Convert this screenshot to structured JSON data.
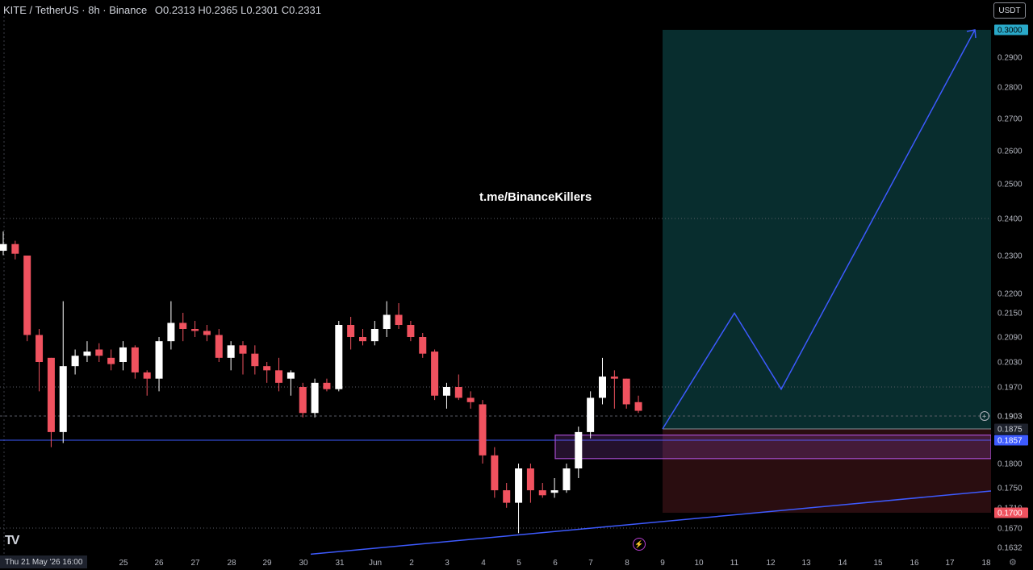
{
  "header": {
    "symbol": "KITE / TetherUS · 8h · Binance",
    "open_label": "O",
    "open": "0.2313",
    "high_label": "H",
    "high": "0.2365",
    "low_label": "L",
    "low": "0.2301",
    "close_label": "C",
    "close": "0.2331"
  },
  "currency": "USDT",
  "watermark": "t.me/BinanceKillers",
  "logo": "TV",
  "date_badge": "Thu 21 May '26   16:00",
  "icons": {
    "flash": "lightning-icon",
    "settings": "gear-icon",
    "logo": "tradingview-logo"
  },
  "colors": {
    "up": "#ffffff",
    "down": "#f0525f",
    "target_zone": "#082d2e",
    "stop_zone": "#2a0d10",
    "trend": "#3d5afe",
    "zone": "#a64ccf"
  },
  "chart_data": {
    "type": "candlestick",
    "timeframe": "8h",
    "ylim": [
      0.1632,
      0.3
    ],
    "y_ticks": [
      {
        "label": "0.2900",
        "v": 0.29
      },
      {
        "label": "0.2800",
        "v": 0.28
      },
      {
        "label": "0.2700",
        "v": 0.27
      },
      {
        "label": "0.2600",
        "v": 0.26
      },
      {
        "label": "0.2500",
        "v": 0.25
      },
      {
        "label": "0.2400",
        "v": 0.24
      },
      {
        "label": "0.2300",
        "v": 0.23
      },
      {
        "label": "0.2200",
        "v": 0.22
      },
      {
        "label": "0.2150",
        "v": 0.215
      },
      {
        "label": "0.2090",
        "v": 0.209
      },
      {
        "label": "0.2030",
        "v": 0.203
      },
      {
        "label": "0.1970",
        "v": 0.197
      },
      {
        "label": "0.1800",
        "v": 0.18
      },
      {
        "label": "0.1750",
        "v": 0.175
      },
      {
        "label": "0.1710",
        "v": 0.171
      },
      {
        "label": "0.1670",
        "v": 0.167
      },
      {
        "label": "0.1632",
        "v": 0.1632
      }
    ],
    "price_badges": [
      {
        "label": "0.3000",
        "v": 0.3,
        "bg": "#2aa9c9",
        "fg": "#000000"
      },
      {
        "label": "0.1903",
        "v": 0.1903,
        "bg": "#000000",
        "fg": "#d1d4dc",
        "ring": true
      },
      {
        "label": "0.1875",
        "v": 0.1875,
        "bg": "#1e222d",
        "fg": "#d1d4dc"
      },
      {
        "label": "0.1857",
        "v": 0.1857,
        "bg": "#3d5afe",
        "fg": "#ffffff"
      },
      {
        "label": "0.1700",
        "v": 0.17,
        "bg": "#f0525f",
        "fg": "#ffffff"
      }
    ],
    "x_ticks": [
      "25",
      "26",
      "27",
      "28",
      "29",
      "30",
      "31",
      "Jun",
      "2",
      "3",
      "4",
      "5",
      "6",
      "7",
      "8",
      "9",
      "10",
      "11",
      "12",
      "13",
      "14",
      "15",
      "16",
      "17",
      "18"
    ],
    "x_start_label": "Thu 21 May '26",
    "candles": [
      {
        "o": 0.2313,
        "h": 0.2365,
        "l": 0.2301,
        "c": 0.2331
      },
      {
        "o": 0.2331,
        "h": 0.234,
        "l": 0.229,
        "c": 0.2305
      },
      {
        "o": 0.23,
        "h": 0.23,
        "l": 0.208,
        "c": 0.2095
      },
      {
        "o": 0.2095,
        "h": 0.211,
        "l": 0.196,
        "c": 0.203
      },
      {
        "o": 0.204,
        "h": 0.204,
        "l": 0.184,
        "c": 0.187
      },
      {
        "o": 0.187,
        "h": 0.218,
        "l": 0.185,
        "c": 0.202
      },
      {
        "o": 0.202,
        "h": 0.206,
        "l": 0.2,
        "c": 0.2045
      },
      {
        "o": 0.2045,
        "h": 0.208,
        "l": 0.203,
        "c": 0.2055
      },
      {
        "o": 0.206,
        "h": 0.2075,
        "l": 0.203,
        "c": 0.2045
      },
      {
        "o": 0.204,
        "h": 0.206,
        "l": 0.201,
        "c": 0.2025
      },
      {
        "o": 0.203,
        "h": 0.208,
        "l": 0.201,
        "c": 0.2065
      },
      {
        "o": 0.2065,
        "h": 0.207,
        "l": 0.199,
        "c": 0.2005
      },
      {
        "o": 0.2005,
        "h": 0.201,
        "l": 0.195,
        "c": 0.199
      },
      {
        "o": 0.199,
        "h": 0.209,
        "l": 0.196,
        "c": 0.208
      },
      {
        "o": 0.208,
        "h": 0.218,
        "l": 0.206,
        "c": 0.2125
      },
      {
        "o": 0.2125,
        "h": 0.215,
        "l": 0.208,
        "c": 0.211
      },
      {
        "o": 0.211,
        "h": 0.213,
        "l": 0.209,
        "c": 0.2105
      },
      {
        "o": 0.2105,
        "h": 0.212,
        "l": 0.208,
        "c": 0.2095
      },
      {
        "o": 0.2095,
        "h": 0.211,
        "l": 0.203,
        "c": 0.204
      },
      {
        "o": 0.204,
        "h": 0.208,
        "l": 0.201,
        "c": 0.207
      },
      {
        "o": 0.207,
        "h": 0.208,
        "l": 0.2,
        "c": 0.205
      },
      {
        "o": 0.205,
        "h": 0.207,
        "l": 0.2,
        "c": 0.202
      },
      {
        "o": 0.202,
        "h": 0.203,
        "l": 0.198,
        "c": 0.201
      },
      {
        "o": 0.201,
        "h": 0.204,
        "l": 0.196,
        "c": 0.198
      },
      {
        "o": 0.199,
        "h": 0.201,
        "l": 0.195,
        "c": 0.2005
      },
      {
        "o": 0.197,
        "h": 0.198,
        "l": 0.19,
        "c": 0.191
      },
      {
        "o": 0.191,
        "h": 0.199,
        "l": 0.19,
        "c": 0.198
      },
      {
        "o": 0.198,
        "h": 0.199,
        "l": 0.196,
        "c": 0.1965
      },
      {
        "o": 0.1965,
        "h": 0.213,
        "l": 0.196,
        "c": 0.212
      },
      {
        "o": 0.212,
        "h": 0.214,
        "l": 0.206,
        "c": 0.209
      },
      {
        "o": 0.209,
        "h": 0.211,
        "l": 0.207,
        "c": 0.208
      },
      {
        "o": 0.208,
        "h": 0.213,
        "l": 0.207,
        "c": 0.211
      },
      {
        "o": 0.211,
        "h": 0.218,
        "l": 0.209,
        "c": 0.2145
      },
      {
        "o": 0.2145,
        "h": 0.2175,
        "l": 0.211,
        "c": 0.212
      },
      {
        "o": 0.212,
        "h": 0.213,
        "l": 0.208,
        "c": 0.209
      },
      {
        "o": 0.209,
        "h": 0.21,
        "l": 0.204,
        "c": 0.205
      },
      {
        "o": 0.2055,
        "h": 0.206,
        "l": 0.194,
        "c": 0.195
      },
      {
        "o": 0.195,
        "h": 0.198,
        "l": 0.192,
        "c": 0.197
      },
      {
        "o": 0.197,
        "h": 0.2,
        "l": 0.194,
        "c": 0.1945
      },
      {
        "o": 0.1945,
        "h": 0.196,
        "l": 0.192,
        "c": 0.1935
      },
      {
        "o": 0.193,
        "h": 0.194,
        "l": 0.18,
        "c": 0.182
      },
      {
        "o": 0.182,
        "h": 0.184,
        "l": 0.173,
        "c": 0.1745
      },
      {
        "o": 0.1745,
        "h": 0.176,
        "l": 0.171,
        "c": 0.172
      },
      {
        "o": 0.172,
        "h": 0.18,
        "l": 0.166,
        "c": 0.179
      },
      {
        "o": 0.179,
        "h": 0.18,
        "l": 0.172,
        "c": 0.1745
      },
      {
        "o": 0.1745,
        "h": 0.176,
        "l": 0.173,
        "c": 0.1735
      },
      {
        "o": 0.174,
        "h": 0.177,
        "l": 0.173,
        "c": 0.1745
      },
      {
        "o": 0.1745,
        "h": 0.18,
        "l": 0.174,
        "c": 0.179
      },
      {
        "o": 0.179,
        "h": 0.188,
        "l": 0.177,
        "c": 0.187
      },
      {
        "o": 0.187,
        "h": 0.196,
        "l": 0.186,
        "c": 0.1945
      },
      {
        "o": 0.1945,
        "h": 0.204,
        "l": 0.193,
        "c": 0.1995
      },
      {
        "o": 0.1995,
        "h": 0.201,
        "l": 0.192,
        "c": 0.199
      },
      {
        "o": 0.199,
        "h": 0.199,
        "l": 0.192,
        "c": 0.193
      },
      {
        "o": 0.1935,
        "h": 0.195,
        "l": 0.191,
        "c": 0.1915
      }
    ],
    "long_position": {
      "entry": 0.1875,
      "target": 0.3,
      "stop": 0.17
    },
    "demand_zone": {
      "from": 0.182,
      "to": 0.186
    },
    "support_line": 0.1857,
    "dotted_levels": [
      0.24,
      0.197,
      0.167
    ],
    "dashed_level": 0.1903,
    "trendline": {
      "from_price": 0.1625,
      "to_price": 0.176
    },
    "projection": [
      0.1875,
      0.217,
      0.1965,
      0.3
    ]
  }
}
